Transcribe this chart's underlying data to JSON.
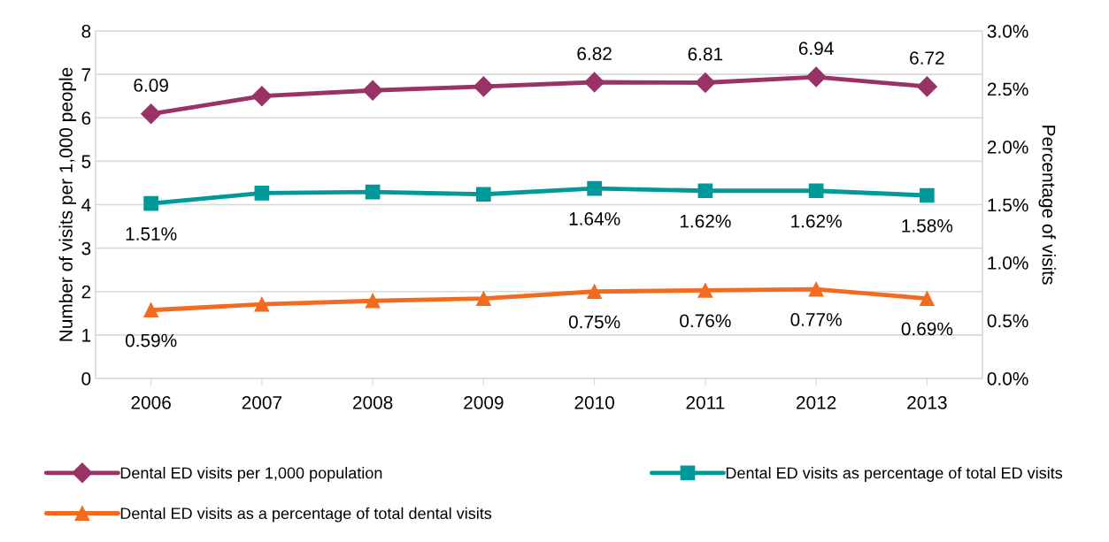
{
  "chart_data": {
    "type": "line",
    "categories": [
      "2006",
      "2007",
      "2008",
      "2009",
      "2010",
      "2011",
      "2012",
      "2013"
    ],
    "ylabel": "Number of visits per 1,000 people",
    "y2label": "Percentage of visits",
    "ylim": [
      0,
      8
    ],
    "yticks": [
      0,
      1,
      2,
      3,
      4,
      5,
      6,
      7,
      8
    ],
    "y2lim": [
      0,
      3.0
    ],
    "y2ticks": [
      {
        "value": 0,
        "label": "0.0%"
      },
      {
        "value": 0.5,
        "label": "0.5%"
      },
      {
        "value": 1.0,
        "label": "1.0%"
      },
      {
        "value": 1.5,
        "label": "1.5%"
      },
      {
        "value": 2.0,
        "label": "2.0%"
      },
      {
        "value": 2.5,
        "label": "2.5%"
      },
      {
        "value": 3.0,
        "label": "3.0%"
      }
    ],
    "grid": "y",
    "legend": "bottom",
    "series": [
      {
        "name": "Dental ED visits per 1,000 population",
        "color": "#993366",
        "marker": "diamond",
        "values": [
          6.09,
          6.5,
          6.63,
          6.72,
          6.82,
          6.81,
          6.94,
          6.72
        ],
        "value_labels": [
          "6.09",
          null,
          null,
          null,
          "6.82",
          "6.81",
          "6.94",
          "6.72"
        ]
      },
      {
        "name": "Dental ED visits as percentage of total ED visits",
        "color": "#009999",
        "marker": "square",
        "axis": "y2",
        "values": [
          1.51,
          1.6,
          1.61,
          1.59,
          1.64,
          1.62,
          1.62,
          1.58
        ],
        "value_labels": [
          "1.51%",
          null,
          null,
          null,
          "1.64%",
          "1.62%",
          "1.62%",
          "1.58%"
        ]
      },
      {
        "name": "Dental ED visits as a percentage of total dental visits",
        "color": "#f26b21",
        "marker": "triangle",
        "axis": "y2",
        "values": [
          0.59,
          0.64,
          0.67,
          0.69,
          0.75,
          0.76,
          0.77,
          0.69
        ],
        "value_labels": [
          "0.59%",
          null,
          null,
          null,
          "0.75%",
          "0.76%",
          "0.77%",
          "0.69%"
        ]
      }
    ]
  }
}
